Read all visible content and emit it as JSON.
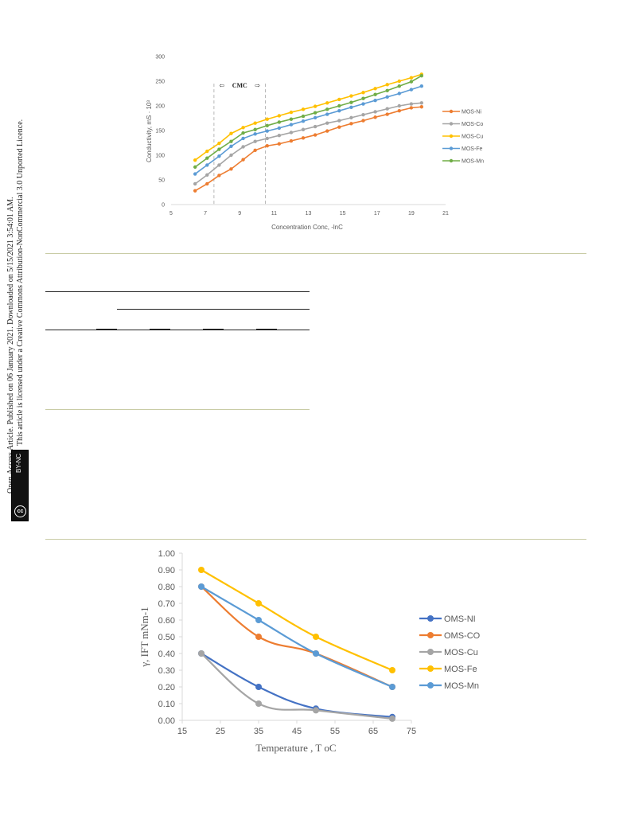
{
  "sidebar": {
    "line1": "Open Access Article. Published on 06 January 2021. Downloaded on 5/15/2021 3:54:01 AM.",
    "line2": "This article is licensed under a Creative Commons Attribution-NonCommercial 3.0 Unported Licence.",
    "badge_cc": "cc",
    "badge_text": "BY-NC"
  },
  "chart_data": [
    {
      "type": "line",
      "title": "",
      "xlabel": "Concentration Conc, -lnC",
      "ylabel": "Conductivity, mS · 10³",
      "xlim": [
        5,
        21
      ],
      "ylim": [
        0,
        300
      ],
      "xticks": [
        5,
        7,
        9,
        11,
        13,
        15,
        17,
        19,
        21
      ],
      "yticks": [
        0,
        50,
        100,
        150,
        200,
        250,
        300
      ],
      "annotation": {
        "text": "CMC",
        "x_range": [
          7.5,
          10.5
        ]
      },
      "legend": "right",
      "x": [
        6.4,
        7.1,
        7.8,
        8.5,
        9.2,
        9.9,
        10.6,
        11.3,
        12.0,
        12.7,
        13.4,
        14.1,
        14.8,
        15.5,
        16.2,
        16.9,
        17.6,
        18.3,
        19.0,
        19.6
      ],
      "series": [
        {
          "name": "MOS-Ni",
          "color": "#ed7d31",
          "values": [
            28,
            42,
            59,
            72,
            91,
            110,
            119,
            123,
            129,
            135,
            141,
            149,
            157,
            164,
            170,
            177,
            183,
            190,
            196,
            198
          ]
        },
        {
          "name": "MOS-Co",
          "color": "#a5a5a5",
          "values": [
            42,
            60,
            80,
            100,
            117,
            128,
            134,
            140,
            146,
            152,
            158,
            165,
            170,
            176,
            182,
            188,
            194,
            200,
            204,
            206
          ]
        },
        {
          "name": "MOS-Cu",
          "color": "#ffc000",
          "values": [
            90,
            108,
            124,
            144,
            156,
            165,
            173,
            180,
            187,
            193,
            199,
            206,
            213,
            220,
            227,
            235,
            243,
            250,
            257,
            264
          ]
        },
        {
          "name": "MOS-Fe",
          "color": "#5b9bd5",
          "values": [
            62,
            80,
            98,
            118,
            134,
            143,
            149,
            155,
            162,
            169,
            176,
            183,
            190,
            197,
            204,
            211,
            218,
            225,
            233,
            240
          ]
        },
        {
          "name": "MOS-Mn",
          "color": "#70ad47",
          "values": [
            76,
            94,
            112,
            128,
            145,
            152,
            160,
            167,
            173,
            179,
            186,
            193,
            200,
            207,
            215,
            223,
            231,
            240,
            249,
            261
          ]
        }
      ]
    },
    {
      "type": "line",
      "title": "",
      "xlabel": "Temperature , T oC",
      "ylabel": "γ, IFT mNm-1",
      "xlim": [
        15,
        75
      ],
      "ylim": [
        0,
        1.0
      ],
      "xticks": [
        15,
        25,
        35,
        45,
        55,
        65,
        75
      ],
      "yticks": [
        "0.00",
        "0.10",
        "0.20",
        "0.30",
        "0.40",
        "0.50",
        "0.60",
        "0.70",
        "0.80",
        "0.90",
        "1.00"
      ],
      "legend": "right",
      "x": [
        20,
        35,
        50,
        70
      ],
      "series": [
        {
          "name": "OMS-NI",
          "color": "#4472c4",
          "values": [
            0.4,
            0.2,
            0.07,
            0.02
          ]
        },
        {
          "name": "OMS-CO",
          "color": "#ed7d31",
          "values": [
            0.8,
            0.5,
            0.4,
            0.2
          ]
        },
        {
          "name": "MOS-Cu",
          "color": "#a5a5a5",
          "values": [
            0.4,
            0.1,
            0.06,
            0.01
          ]
        },
        {
          "name": "MOS-Fe",
          "color": "#ffc000",
          "values": [
            0.9,
            0.7,
            0.5,
            0.3
          ]
        },
        {
          "name": "MOS-Mn",
          "color": "#5b9bd5",
          "values": [
            0.8,
            0.6,
            0.4,
            0.2
          ]
        }
      ]
    }
  ]
}
